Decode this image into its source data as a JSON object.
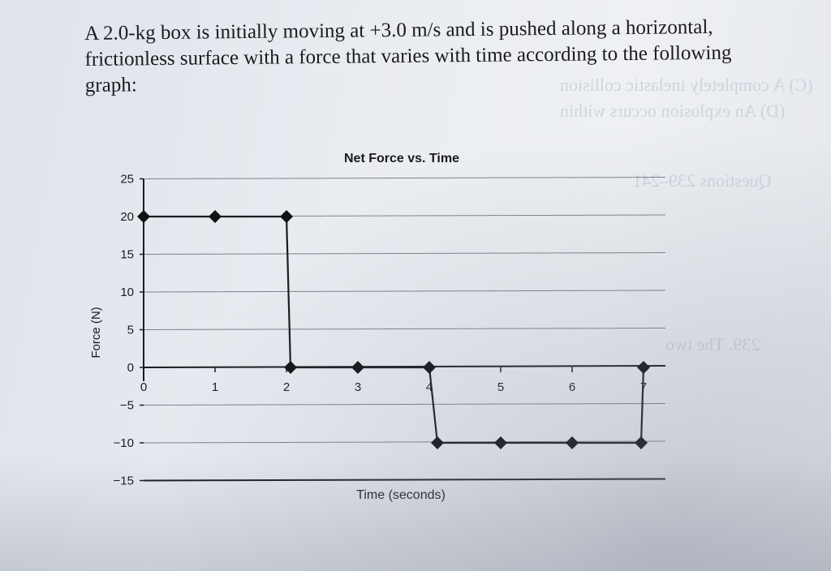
{
  "problem": {
    "lines": [
      "A 2.0-kg box is initially moving at +3.0 m/s and is pushed along a horizontal,",
      "frictionless surface with a force that varies with time according to the following",
      "graph:"
    ]
  },
  "chart_data": {
    "type": "line",
    "title": "Net Force vs. Time",
    "xlabel": "Time (seconds)",
    "ylabel": "Force (N)",
    "xlim": [
      0,
      7
    ],
    "ylim": [
      -15,
      25
    ],
    "xticks": [
      "0",
      "1",
      "2",
      "3",
      "4",
      "5",
      "6",
      "7"
    ],
    "yticks": [
      "25",
      "20",
      "15",
      "10",
      "5",
      "0",
      "−5",
      "−10",
      "−15"
    ],
    "grid": "horizontal",
    "legend": null,
    "series": [
      {
        "name": "Net Force",
        "marker": "diamond",
        "points": [
          {
            "x": 0,
            "y": 20
          },
          {
            "x": 1,
            "y": 20
          },
          {
            "x": 2,
            "y": 20
          },
          {
            "x": 2,
            "y": 0
          },
          {
            "x": 3,
            "y": 0
          },
          {
            "x": 4,
            "y": 0
          },
          {
            "x": 4,
            "y": -10
          },
          {
            "x": 5,
            "y": -10
          },
          {
            "x": 6,
            "y": -10
          },
          {
            "x": 7,
            "y": -10
          },
          {
            "x": 7,
            "y": 0
          }
        ]
      }
    ]
  }
}
